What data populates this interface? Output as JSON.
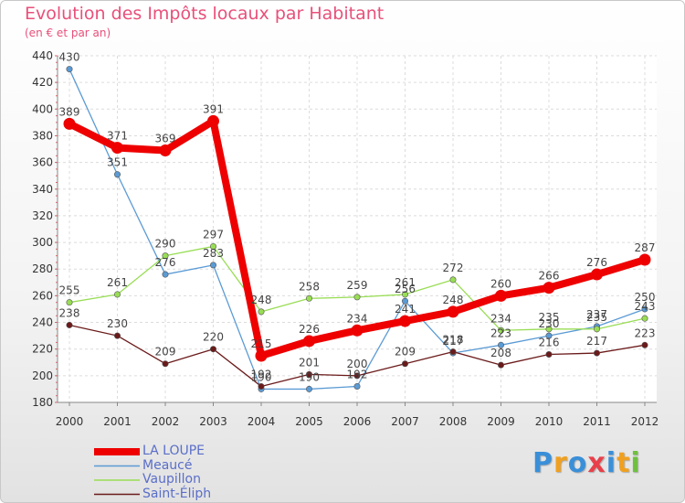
{
  "brand": {
    "name": "Proxiti",
    "letters": [
      "P",
      "r",
      "o",
      "x",
      "i",
      "t",
      "i"
    ],
    "letter_colors": [
      "#3a8fd8",
      "#f0a020",
      "#3a8fd8",
      "#e8404a",
      "#3a8fd8",
      "#f0a020",
      "#70c040"
    ]
  },
  "chart_data": {
    "type": "line",
    "title": "Evolution des Impôts locaux par Habitant",
    "subtitle": "(en € et par an)",
    "xlabel": "",
    "ylabel": "",
    "ylim": [
      180,
      440
    ],
    "y_ticks": [
      180,
      200,
      220,
      240,
      260,
      280,
      300,
      320,
      340,
      360,
      380,
      400,
      420,
      440
    ],
    "categories": [
      "2000",
      "2001",
      "2002",
      "2003",
      "2004",
      "2005",
      "2006",
      "2007",
      "2008",
      "2009",
      "2010",
      "2011",
      "2012"
    ],
    "legend_position": "bottom-left",
    "grid": true,
    "series": [
      {
        "name": "LA LOUPE",
        "color": "#ee0000",
        "emphasis": "thick",
        "values": [
          389,
          371,
          369,
          391,
          215,
          226,
          234,
          241,
          248,
          260,
          266,
          276,
          287
        ],
        "labels": [
          "389",
          "371",
          "369",
          "391",
          "215",
          "226",
          "234",
          "241",
          "248",
          "260",
          "266",
          "276",
          "287"
        ]
      },
      {
        "name": "Meaucé",
        "color": "#5b9bd5",
        "emphasis": "thin",
        "values": [
          430,
          351,
          276,
          283,
          190,
          190,
          192,
          256,
          217,
          223,
          230,
          237,
          250
        ],
        "labels": [
          "430",
          "351",
          "276",
          "283",
          "190",
          "190",
          "192",
          "256",
          "217",
          "223",
          "230",
          "237",
          "250"
        ]
      },
      {
        "name": "Vaupillon",
        "color": "#99dd55",
        "emphasis": "thin",
        "values": [
          255,
          261,
          290,
          297,
          248,
          258,
          259,
          261,
          272,
          234,
          235,
          235,
          243
        ],
        "labels": [
          "255",
          "261",
          "290",
          "297",
          "248",
          "258",
          "259",
          "261",
          "272",
          "234",
          "235",
          "235",
          "243"
        ]
      },
      {
        "name": "Saint-Éliph",
        "color": "#6b1a1a",
        "emphasis": "thin",
        "values": [
          238,
          230,
          209,
          220,
          192,
          201,
          200,
          209,
          218,
          208,
          216,
          217,
          223
        ],
        "labels": [
          "238",
          "230",
          "209",
          "220",
          "192",
          "201",
          "200",
          "209",
          "218",
          "208",
          "216",
          "217",
          "223"
        ]
      }
    ]
  }
}
